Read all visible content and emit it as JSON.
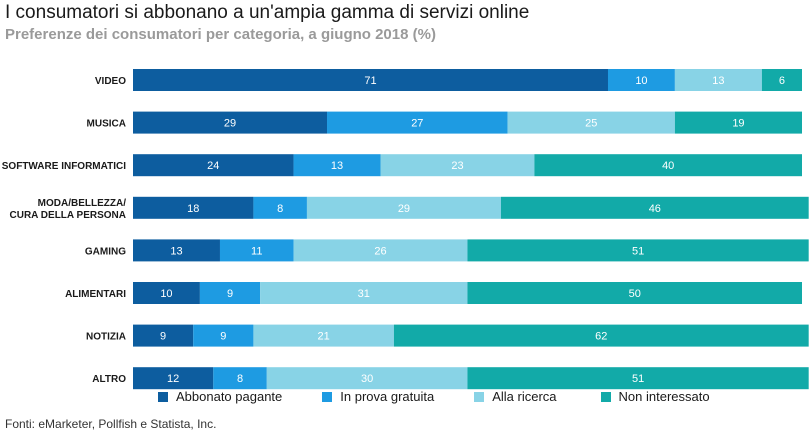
{
  "header": {
    "title": "I consumatori si abbonano a un'ampia gamma di servizi online",
    "subtitle": "Preferenze dei consumatori per categoria, a giugno 2018 (%)"
  },
  "footer": {
    "source": "Fonti: eMarketer, Pollfish e Statista, Inc."
  },
  "chart_data": {
    "type": "bar",
    "orientation": "horizontal",
    "stacked": true,
    "title": "I consumatori si abbonano a un'ampia gamma di servizi online",
    "subtitle": "Preferenze dei consumatori per categoria, a giugno 2018 (%)",
    "categories": [
      "VIDEO",
      "MUSICA",
      "SOFTWARE INFORMATICI",
      "MODA/BELLEZZA/\nCURA DELLA PERSONA",
      "GAMING",
      "ALIMENTARI",
      "NOTIZIA",
      "ALTRO"
    ],
    "series": [
      {
        "name": "Abbonato pagante",
        "color": "#0d5d9f",
        "values": [
          71,
          29,
          24,
          18,
          13,
          10,
          9,
          12
        ]
      },
      {
        "name": "In prova gratuita",
        "color": "#1e9be2",
        "values": [
          10,
          27,
          13,
          8,
          11,
          9,
          9,
          8
        ]
      },
      {
        "name": "Alla ricerca",
        "color": "#88d3e6",
        "values": [
          13,
          25,
          23,
          29,
          26,
          31,
          21,
          30
        ]
      },
      {
        "name": "Non interessato",
        "color": "#12aaa8",
        "values": [
          6,
          19,
          40,
          46,
          51,
          50,
          62,
          51
        ]
      }
    ],
    "xlim": [
      0,
      100
    ],
    "legend_position": "bottom",
    "grid": false
  }
}
